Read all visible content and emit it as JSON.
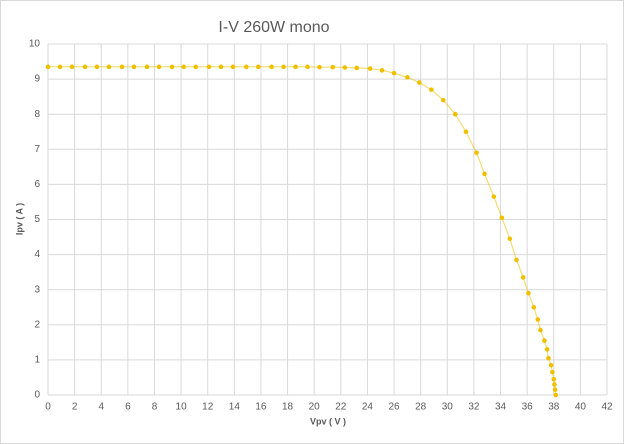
{
  "chart_data": {
    "type": "line",
    "title": "I-V 260W mono",
    "x_label": "Vpv ( V )",
    "y_label": "Ipv ( A )",
    "x": [
      0,
      0.9,
      1.8,
      2.78,
      3.68,
      4.58,
      5.56,
      6.46,
      7.44,
      8.34,
      9.32,
      10.2,
      11.1,
      12.1,
      13.0,
      13.9,
      14.9,
      15.8,
      16.8,
      17.7,
      18.6,
      19.5,
      20.4,
      21.4,
      22.3,
      23.2,
      24.2,
      25.1,
      26.0,
      27.0,
      27.9,
      28.8,
      29.7,
      30.6,
      31.4,
      32.2,
      32.8,
      33.5,
      34.1,
      34.7,
      35.2,
      35.7,
      36.1,
      36.5,
      36.8,
      37.0,
      37.3,
      37.5,
      37.6,
      37.8,
      37.9,
      38.0,
      38.05,
      38.1,
      38.15
    ],
    "values": [
      9.35,
      9.35,
      9.35,
      9.35,
      9.35,
      9.35,
      9.35,
      9.35,
      9.35,
      9.35,
      9.35,
      9.35,
      9.35,
      9.35,
      9.35,
      9.35,
      9.35,
      9.35,
      9.35,
      9.35,
      9.35,
      9.35,
      9.34,
      9.34,
      9.33,
      9.32,
      9.3,
      9.25,
      9.17,
      9.05,
      8.9,
      8.7,
      8.4,
      8.0,
      7.5,
      6.9,
      6.3,
      5.65,
      5.05,
      4.45,
      3.85,
      3.35,
      2.9,
      2.5,
      2.15,
      1.85,
      1.55,
      1.3,
      1.05,
      0.85,
      0.65,
      0.45,
      0.3,
      0.15,
      0
    ],
    "color": "#f0c000",
    "xlim": [
      0,
      42
    ],
    "xticks": [
      0,
      2,
      4,
      6,
      8,
      10,
      12,
      14,
      16,
      18,
      20,
      22,
      24,
      26,
      28,
      30,
      32,
      34,
      36,
      38,
      40,
      42
    ],
    "ylim": [
      0,
      10
    ],
    "yticks": [
      0,
      1,
      2,
      3,
      4,
      5,
      6,
      7,
      8,
      9,
      10
    ],
    "grid": true
  }
}
